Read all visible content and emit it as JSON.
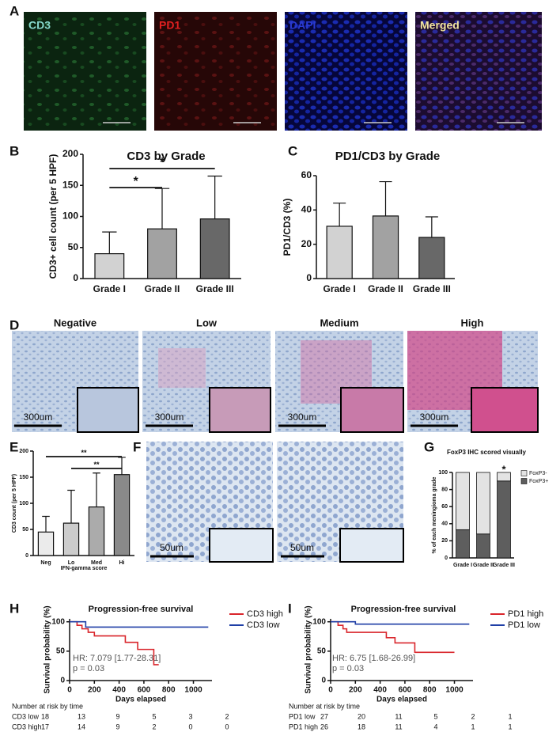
{
  "panel_letters": [
    "A",
    "B",
    "C",
    "D",
    "E",
    "F",
    "G",
    "H",
    "I"
  ],
  "micrographs": {
    "a_labels": [
      "CD3",
      "PD1",
      "DAPI",
      "Merged"
    ],
    "d_labels": [
      "Negative",
      "Low",
      "Medium",
      "High"
    ],
    "d_scale": "300um",
    "f_scale": "50um"
  },
  "chart_data": [
    {
      "type": "bar",
      "title": "CD3 by Grade",
      "ylabel": "CD3+ cell count (per 5 HPF)",
      "categories": [
        "Grade I",
        "Grade II",
        "Grade III"
      ],
      "values": [
        40,
        80,
        96
      ],
      "errors": [
        35,
        65,
        69
      ],
      "colors": [
        "#d2d2d2",
        "#a2a2a2",
        "#686868"
      ],
      "ylim": [
        0,
        200
      ],
      "yticks": [
        0,
        50,
        100,
        150,
        200
      ],
      "significance": [
        {
          "label": "*",
          "between": [
            "Grade I",
            "Grade II"
          ]
        },
        {
          "label": "*",
          "between": [
            "Grade I",
            "Grade III"
          ]
        }
      ]
    },
    {
      "type": "bar",
      "title": "PD1/CD3 by Grade",
      "ylabel": "PD1/CD3 (%)",
      "categories": [
        "Grade I",
        "Grade II",
        "Grade III"
      ],
      "values": [
        30.5,
        36.5,
        24
      ],
      "errors": [
        13.5,
        20,
        12
      ],
      "colors": [
        "#d2d2d2",
        "#a2a2a2",
        "#686868"
      ],
      "ylim": [
        0,
        60
      ],
      "yticks": [
        0,
        20,
        40,
        60
      ]
    },
    {
      "type": "bar",
      "ylabel": "CD3 count (per 5 HPF)",
      "xlabel": "IFN-gamma score",
      "categories": [
        "Neg",
        "Lo",
        "Med",
        "Hi"
      ],
      "values": [
        45,
        62,
        93,
        155
      ],
      "errors": [
        30,
        63,
        65,
        33
      ],
      "colors": [
        "#ebebeb",
        "#cccccc",
        "#ababab",
        "#8a8a8a"
      ],
      "ylim": [
        0,
        200
      ],
      "yticks": [
        0,
        50,
        100,
        150,
        200
      ],
      "significance": [
        {
          "label": "**",
          "between": [
            "Neg",
            "Hi"
          ]
        },
        {
          "label": "**",
          "between": [
            "Lo",
            "Hi"
          ]
        }
      ]
    },
    {
      "type": "stacked",
      "title": "FoxP3 IHC scored visually",
      "ylabel": "% of each meningioma grade",
      "categories": [
        "Grade I",
        "Grade II",
        "Grade III"
      ],
      "series": [
        {
          "name": "FoxP3+",
          "color": "#5e5e5e",
          "values": [
            33,
            28,
            90
          ]
        },
        {
          "name": "FoxP3-",
          "color": "#e3e3e3",
          "values": [
            67,
            72,
            10
          ]
        }
      ],
      "ylim": [
        0,
        100
      ],
      "yticks": [
        0,
        20,
        40,
        60,
        80,
        100
      ],
      "annotations": [
        {
          "label": "*",
          "category": "Grade III"
        }
      ]
    },
    {
      "type": "step",
      "title": "Progression-free survival",
      "ylabel": "Survival probability (%)",
      "xlabel": "Days elapsed",
      "series": [
        {
          "name": "CD3 high",
          "color": "#d9252b",
          "x": [
            0,
            60,
            100,
            150,
            200,
            450,
            550,
            680,
            720
          ],
          "values": [
            100,
            94,
            88,
            82,
            76,
            65,
            53,
            27,
            27
          ]
        },
        {
          "name": "CD3 low",
          "color": "#1f3fa6",
          "x": [
            0,
            130,
            1120
          ],
          "values": [
            100,
            91,
            91
          ]
        }
      ],
      "xlim": [
        0,
        1150
      ],
      "xticks": [
        0,
        200,
        400,
        600,
        800,
        1000
      ],
      "ylim": [
        0,
        105
      ],
      "yticks": [
        0,
        50,
        100
      ],
      "annotations": [
        "HR: 7.079 [1.77-28.31]",
        "p = 0.03"
      ],
      "risk_table": {
        "title": "Number at risk by time",
        "rows": [
          {
            "name": "CD3 low",
            "values": [
              18,
              13,
              9,
              5,
              3,
              2
            ]
          },
          {
            "name": "CD3 high",
            "values": [
              17,
              14,
              9,
              2,
              0,
              0
            ]
          }
        ]
      }
    },
    {
      "type": "step",
      "title": "Progression-free survival",
      "ylabel": "Survival probability (%)",
      "xlabel": "Days elapsed",
      "series": [
        {
          "name": "PD1 high",
          "color": "#d9252b",
          "x": [
            0,
            60,
            100,
            130,
            450,
            520,
            680,
            1000
          ],
          "values": [
            100,
            94,
            88,
            82,
            73,
            64,
            48,
            48
          ]
        },
        {
          "name": "PD1 low",
          "color": "#1f3fa6",
          "x": [
            0,
            200,
            1120
          ],
          "values": [
            100,
            96,
            96
          ]
        }
      ],
      "xlim": [
        0,
        1150
      ],
      "xticks": [
        0,
        200,
        400,
        600,
        800,
        1000
      ],
      "ylim": [
        0,
        105
      ],
      "yticks": [
        0,
        50,
        100
      ],
      "annotations": [
        "HR: 6.75 [1.68-26.99]",
        "p = 0.03"
      ],
      "risk_table": {
        "title": "Number at risk by time",
        "rows": [
          {
            "name": "PD1 low",
            "values": [
              27,
              20,
              11,
              5,
              2,
              1
            ]
          },
          {
            "name": "PD1 high",
            "values": [
              26,
              18,
              11,
              4,
              1,
              1
            ]
          }
        ]
      }
    }
  ]
}
